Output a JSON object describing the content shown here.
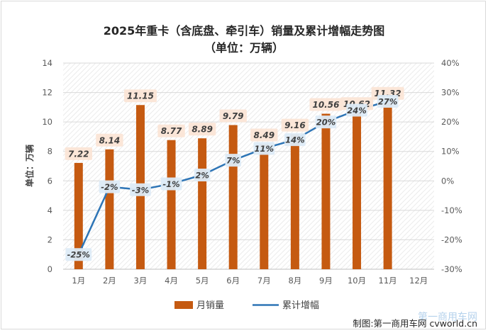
{
  "chart_data": {
    "type": "bar",
    "title": "2025年重卡（含底盘、牵引车）销量及累计增幅走势图",
    "subtitle": "（单位：万辆）",
    "ylabel": "单位：万辆",
    "categories": [
      "1月",
      "2月",
      "3月",
      "4月",
      "5月",
      "6月",
      "7月",
      "8月",
      "9月",
      "10月",
      "11月",
      "12月"
    ],
    "ylim": [
      0,
      14
    ],
    "y_ticks": [
      "0",
      "2",
      "4",
      "6",
      "8",
      "10",
      "12",
      "14"
    ],
    "y2lim": [
      -30,
      40
    ],
    "y2_ticks": [
      "-30%",
      "-20%",
      "-10%",
      "0%",
      "10%",
      "20%",
      "30%",
      "40%"
    ],
    "series": [
      {
        "name": "月销量",
        "kind": "bar",
        "axis": "left",
        "color": "#c55a11",
        "values": [
          7.22,
          8.14,
          11.15,
          8.77,
          8.89,
          9.79,
          8.49,
          9.16,
          10.56,
          10.62,
          11.32,
          null
        ],
        "labels": [
          "7.22",
          "8.14",
          "11.15",
          "8.77",
          "8.89",
          "9.79",
          "8.49",
          "9.16",
          "10.56",
          "10.62",
          "11.32",
          ""
        ]
      },
      {
        "name": "累计增幅",
        "kind": "line",
        "axis": "right",
        "color": "#2e75b6",
        "values": [
          -25,
          -2,
          -3,
          -1,
          2,
          7,
          11,
          14,
          20,
          24,
          27,
          null
        ],
        "labels": [
          "-25%",
          "-2%",
          "-3%",
          "-1%",
          "2%",
          "7%",
          "11%",
          "14%",
          "20%",
          "24%",
          "27%",
          ""
        ]
      }
    ],
    "legend_position": "bottom",
    "background": "hatched",
    "source": "制图:第一商用车网 cvworld.cn",
    "watermark": "第一商用车网"
  }
}
